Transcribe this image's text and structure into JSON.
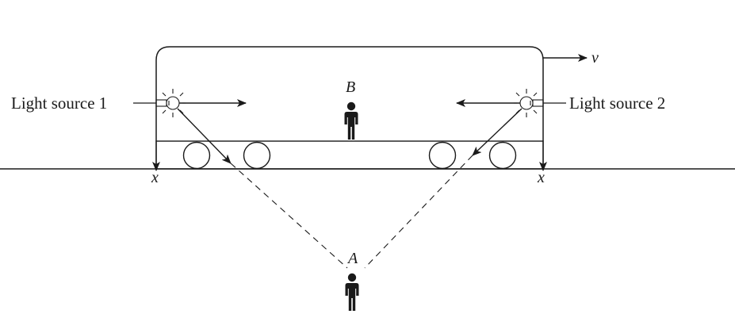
{
  "diagram": {
    "labels": {
      "light_source_1": "Light source 1",
      "light_source_2": "Light source 2",
      "velocity": "v",
      "observer_train": "B",
      "observer_ground": "A",
      "mark_left": "x",
      "mark_right": "x"
    },
    "colors": {
      "ink": "#1a1a1a",
      "background": "#ffffff"
    },
    "icons": {
      "light": "light-bulb-icon",
      "person": "person-icon",
      "wheel": "wheel-icon"
    }
  }
}
